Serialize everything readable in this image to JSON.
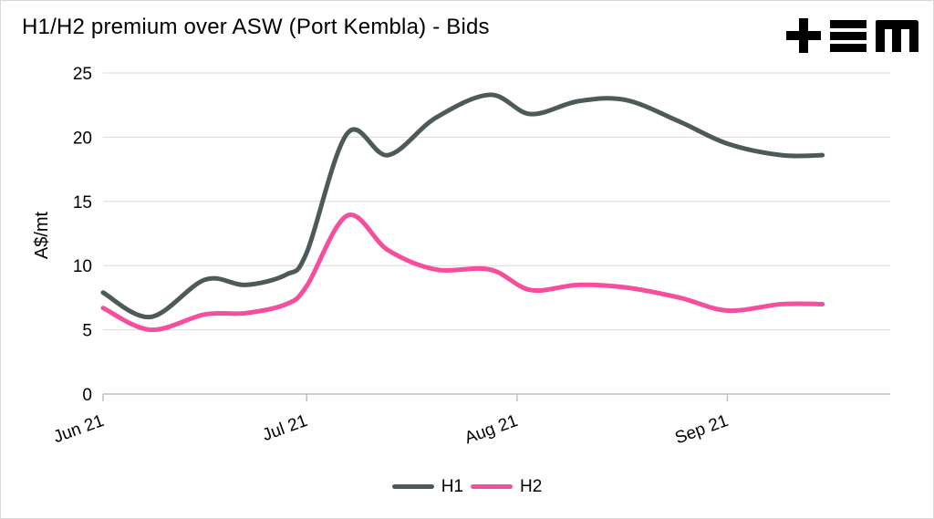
{
  "chart_data": {
    "type": "line",
    "title": "H1/H2 premium over ASW (Port Kembla) - Bids",
    "ylabel": "A$/mt",
    "xlabel": "",
    "ylim": [
      0,
      25
    ],
    "yticks": [
      0,
      5,
      10,
      15,
      20,
      25
    ],
    "xlim": [
      "2021-06-01",
      "2021-09-25"
    ],
    "xticks": [
      {
        "date": "2021-06-01",
        "label": "Jun 21"
      },
      {
        "date": "2021-07-01",
        "label": "Jul 21"
      },
      {
        "date": "2021-08-01",
        "label": "Aug 21"
      },
      {
        "date": "2021-09-01",
        "label": "Sep 21"
      }
    ],
    "grid": "horizontal",
    "legend": "bottom",
    "series": [
      {
        "name": "H1",
        "color": "#4d5a5a",
        "points": [
          [
            "2021-06-01",
            7.9
          ],
          [
            "2021-06-08",
            6.0
          ],
          [
            "2021-06-16",
            8.9
          ],
          [
            "2021-06-22",
            8.5
          ],
          [
            "2021-06-28",
            9.3
          ],
          [
            "2021-07-01",
            11.0
          ],
          [
            "2021-07-07",
            20.3
          ],
          [
            "2021-07-13",
            18.6
          ],
          [
            "2021-07-20",
            21.5
          ],
          [
            "2021-07-28",
            23.3
          ],
          [
            "2021-08-03",
            21.8
          ],
          [
            "2021-08-10",
            22.8
          ],
          [
            "2021-08-17",
            22.9
          ],
          [
            "2021-08-25",
            21.2
          ],
          [
            "2021-09-01",
            19.5
          ],
          [
            "2021-09-09",
            18.6
          ],
          [
            "2021-09-15",
            18.6
          ]
        ]
      },
      {
        "name": "H2",
        "color": "#f44e9c",
        "points": [
          [
            "2021-06-01",
            6.7
          ],
          [
            "2021-06-08",
            5.0
          ],
          [
            "2021-06-16",
            6.2
          ],
          [
            "2021-06-22",
            6.3
          ],
          [
            "2021-06-28",
            7.0
          ],
          [
            "2021-07-01",
            8.4
          ],
          [
            "2021-07-07",
            13.9
          ],
          [
            "2021-07-13",
            11.2
          ],
          [
            "2021-07-20",
            9.7
          ],
          [
            "2021-07-28",
            9.7
          ],
          [
            "2021-08-03",
            8.1
          ],
          [
            "2021-08-10",
            8.5
          ],
          [
            "2021-08-17",
            8.3
          ],
          [
            "2021-08-25",
            7.5
          ],
          [
            "2021-09-01",
            6.5
          ],
          [
            "2021-09-09",
            7.0
          ],
          [
            "2021-09-15",
            7.0
          ]
        ]
      }
    ]
  }
}
